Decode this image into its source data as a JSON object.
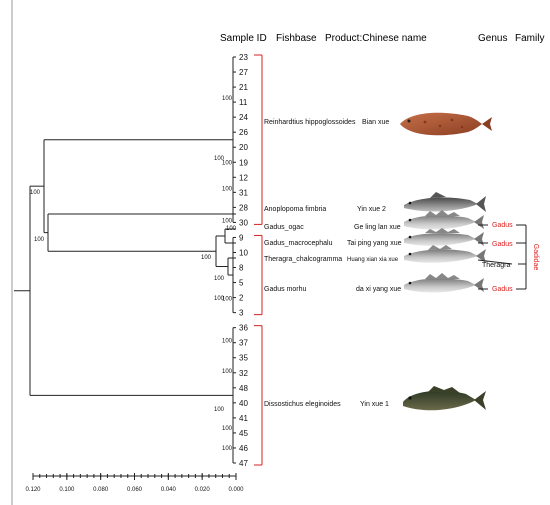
{
  "header": {
    "sample_id": "Sample ID",
    "fishbase": "Fishbase",
    "product": "Product:Chinese name",
    "genus": "Genus",
    "family": "Family"
  },
  "leaves": [
    "23",
    "27",
    "21",
    "11",
    "24",
    "26",
    "20",
    "19",
    "12",
    "31",
    "28",
    "30",
    "9",
    "10",
    "8",
    "5",
    "2",
    "3",
    "36",
    "37",
    "35",
    "32",
    "48",
    "40",
    "41",
    "45",
    "46",
    "47"
  ],
  "bootstrap_labels": [
    "100",
    "100",
    "100",
    "100",
    "100",
    "100",
    "100",
    "100",
    "100",
    "100",
    "100",
    "100",
    "100",
    "100",
    "100",
    "100",
    "100"
  ],
  "species": [
    {
      "name": "Reinhardtius hippoglossoides",
      "product": "Bian xue"
    },
    {
      "name": "Anoplopoma fimbria",
      "product": "Yin xue 2"
    },
    {
      "name": "Gadus_ogac",
      "product": "Ge ling lan xue"
    },
    {
      "name": "Gadus_macrocephalu",
      "product": "Tai ping yang xue"
    },
    {
      "name": "Theragra_chalcogramma",
      "product": "Huang xian xia xue"
    },
    {
      "name": "Gadus morhu",
      "product": "da xi yang xue"
    },
    {
      "name": "Dissostichus eleginoides",
      "product": "Yin xue 1"
    }
  ],
  "genus_labels": [
    "Gadus",
    "Gadus",
    "Theragra",
    "Gadus"
  ],
  "family_label": "Gadidae",
  "axis": {
    "ticks": [
      "0.120",
      "0.100",
      "0.080",
      "0.060",
      "0.040",
      "0.020",
      "0.000"
    ]
  },
  "colors": {
    "bracket": "#d62020",
    "genus_gadus": "#e02020",
    "family": "#e02020",
    "tree": "#222222"
  },
  "fish_icons": [
    "flatfish-icon",
    "sablefish-icon",
    "cod-icon",
    "cod-icon",
    "pollock-icon",
    "cod-icon",
    "toothfish-icon"
  ]
}
